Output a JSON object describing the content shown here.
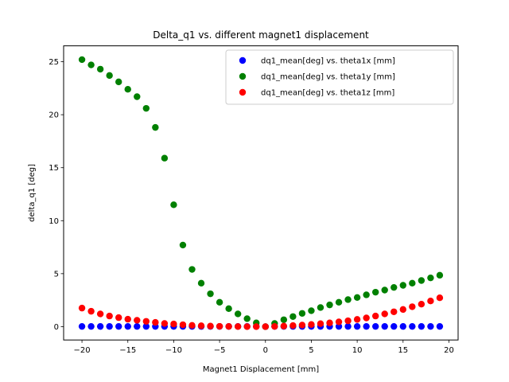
{
  "chart_data": {
    "type": "scatter",
    "title": "Delta_q1 vs. different magnet1 displacement",
    "xlabel": "Magnet1 Displacement [mm]",
    "ylabel": "delta_q1 [deg]",
    "xlim": [
      -22,
      21
    ],
    "ylim": [
      -1.26,
      26.5
    ],
    "xticks": [
      -20,
      -15,
      -10,
      -5,
      0,
      5,
      10,
      15,
      20
    ],
    "yticks": [
      0,
      5,
      10,
      15,
      20,
      25
    ],
    "grid": false,
    "legend_position": "top-right",
    "x": [
      -20,
      -19,
      -18,
      -17,
      -16,
      -15,
      -14,
      -13,
      -12,
      -11,
      -10,
      -9,
      -8,
      -7,
      -6,
      -5,
      -4,
      -3,
      -2,
      -1,
      0,
      1,
      2,
      3,
      4,
      5,
      6,
      7,
      8,
      9,
      10,
      11,
      12,
      13,
      14,
      15,
      16,
      17,
      18,
      19
    ],
    "series": [
      {
        "name": "dq1_mean[deg] vs. theta1x [mm]",
        "color": "#0000ff",
        "values": [
          0.02,
          0.02,
          0.02,
          0.02,
          0.02,
          0.02,
          0.02,
          0.02,
          0.02,
          0.02,
          0.02,
          0.02,
          0.02,
          0.02,
          0.02,
          0.02,
          0.02,
          0.02,
          0.02,
          0.02,
          0.0,
          0.02,
          0.02,
          0.02,
          0.02,
          0.02,
          0.02,
          0.02,
          0.02,
          0.02,
          0.02,
          0.02,
          0.02,
          0.02,
          0.02,
          0.02,
          0.02,
          0.02,
          0.02,
          0.02
        ]
      },
      {
        "name": "dq1_mean[deg] vs. theta1y [mm]",
        "color": "#008000",
        "values": [
          25.2,
          24.7,
          24.3,
          23.7,
          23.1,
          22.4,
          21.7,
          20.6,
          18.8,
          15.9,
          11.5,
          7.7,
          5.4,
          4.1,
          3.1,
          2.3,
          1.7,
          1.2,
          0.75,
          0.35,
          0.0,
          0.3,
          0.65,
          0.95,
          1.25,
          1.5,
          1.8,
          2.05,
          2.3,
          2.55,
          2.75,
          3.0,
          3.25,
          3.45,
          3.7,
          3.9,
          4.1,
          4.35,
          4.6,
          4.85
        ]
      },
      {
        "name": "dq1_mean[deg] vs. theta1z [mm]",
        "color": "#ff0000",
        "values": [
          1.75,
          1.45,
          1.2,
          1.0,
          0.85,
          0.7,
          0.6,
          0.5,
          0.4,
          0.3,
          0.25,
          0.18,
          0.12,
          0.08,
          0.05,
          0.03,
          0.02,
          0.01,
          0.0,
          0.0,
          0.0,
          0.02,
          0.05,
          0.1,
          0.15,
          0.2,
          0.28,
          0.35,
          0.45,
          0.55,
          0.68,
          0.82,
          1.0,
          1.2,
          1.4,
          1.62,
          1.88,
          2.12,
          2.42,
          2.72
        ]
      }
    ]
  }
}
